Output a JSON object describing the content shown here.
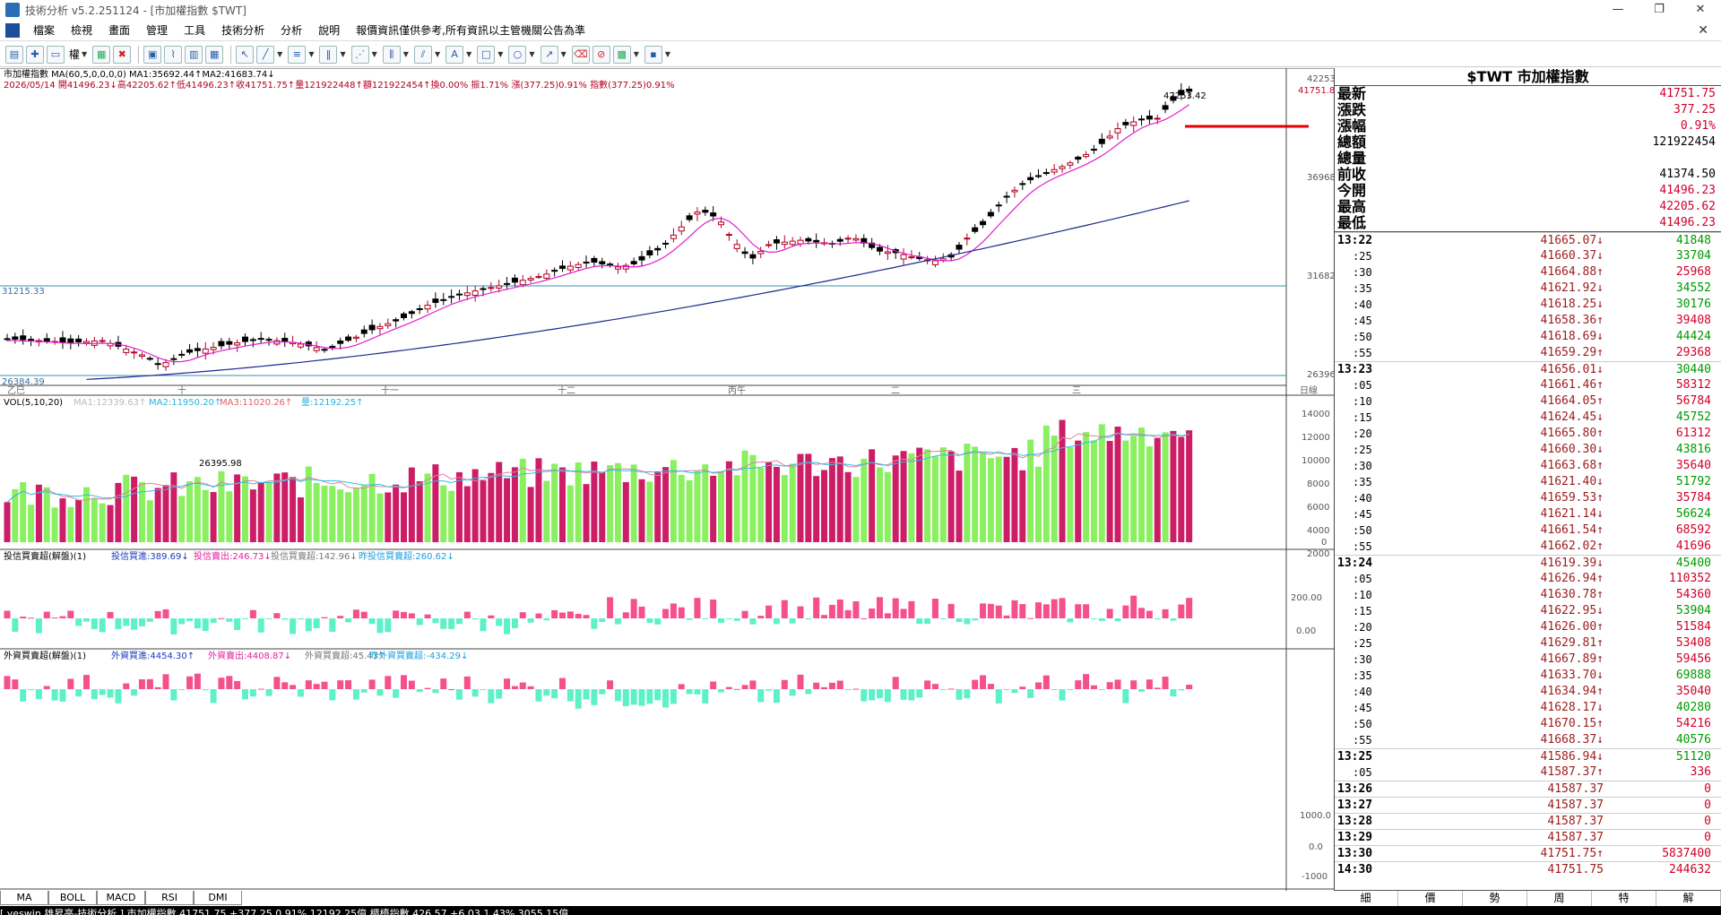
{
  "window": {
    "title": "技術分析 v5.2.251124 - [市加權指數 $TWT]",
    "controls": [
      "—",
      "❐",
      "✕"
    ]
  },
  "menu": [
    "檔案",
    "檢視",
    "畫面",
    "管理",
    "工具",
    "技術分析",
    "分析",
    "說明",
    "報價資訊僅供參考,所有資訊以主管機關公告為準"
  ],
  "toolbar": {
    "right_label": "權",
    "icons": [
      "chart-bars-icon",
      "crosshair-icon",
      "indicator-icon",
      "magnet-icon",
      "red-cross-icon",
      "window-icon",
      "line-chart-icon",
      "compare-icon",
      "layout-icon",
      "cursor-icon",
      "line-draw-icon",
      "hline-icon",
      "vlines-icon",
      "fan-icon",
      "fib-icon",
      "channel-icon",
      "text-icon",
      "rect-icon",
      "ellipse-icon",
      "arrow-icon",
      "eraser-icon",
      "clear-icon",
      "color-icon",
      "save-icon"
    ]
  },
  "chart": {
    "name_line": "市加權指數 MA(60,5,0,0,0,0) MA1:35692.44↑MA2:41683.74↓",
    "ohlc_line": "2026/05/14 開41496.23↓高42205.62↑低41496.23↑收41751.75↑量121922448↑額121922454↑換0.00% 振1.71% 漲(377.25)0.91% 指數(377.25)0.91%",
    "high_label": "42253.42",
    "last_label": "41751.8",
    "low_label": "26395.98",
    "hline1_label": "31215.33",
    "hline2_label": "26384.39",
    "yaxis": [
      "42253",
      "36968",
      "31682",
      "26396"
    ],
    "xaxis": [
      "乙巳",
      "十",
      "十一",
      "十二",
      "丙午",
      "二",
      "三"
    ],
    "xaxis_unit": "日線",
    "vol_line": {
      "a": "VOL(5,10,20)",
      "b": "MA1:12339.63↑",
      "c": "MA2:11950.20↑",
      "d": "MA3:11020.26↑",
      "e": "量:12192.25↑"
    },
    "vol_yaxis": [
      "14000",
      "12000",
      "10000",
      "8000",
      "6000",
      "4000",
      "2000",
      "0"
    ],
    "ind1_line": {
      "a": "投信買賣超(解盤)(1)",
      "b": "投信買進:389.69↓",
      "c": "投信賣出:246.73↓",
      "d": "投信買賣超:142.96↓",
      "e": "昨投信買賣超:260.62↓"
    },
    "ind1_yaxis": [
      "200.00",
      "0.00"
    ],
    "ind2_line": {
      "a": "外資買賣超(解盤)(1)",
      "b": "外資買進:4454.30↑",
      "c": "外資賣出:4408.87↓",
      "d": "外資買賣超:45.43↑",
      "e": "昨外資買賣超:-434.29↓"
    },
    "ind2_yaxis": [
      "1000.0",
      "0.0",
      "-1000"
    ]
  },
  "quote": {
    "header": "$TWT 市加權指數",
    "rows": [
      {
        "label": "最新",
        "value": "41751.75",
        "color": "red"
      },
      {
        "label": "漲跌",
        "value": "377.25",
        "color": "red"
      },
      {
        "label": "漲幅",
        "value": "0.91%",
        "color": "red"
      },
      {
        "label": "總額",
        "value": "121922454",
        "color": "blk"
      },
      {
        "label": "總量",
        "value": "",
        "color": "blk"
      },
      {
        "label": "前收",
        "value": "41374.50",
        "color": "blk"
      },
      {
        "label": "今開",
        "value": "41496.23",
        "color": "red"
      },
      {
        "label": "最高",
        "value": "42205.62",
        "color": "red"
      },
      {
        "label": "最低",
        "value": "41496.23",
        "color": "red"
      }
    ]
  },
  "ticks": [
    {
      "t": "13:22",
      "p": "41665.07↓",
      "q": "41848",
      "full": true,
      "qc": "grn"
    },
    {
      "t": ":25",
      "p": "41660.37↓",
      "q": "33704",
      "qc": "grn"
    },
    {
      "t": ":30",
      "p": "41664.88↑",
      "q": "25968",
      "qc": "red"
    },
    {
      "t": ":35",
      "p": "41621.92↓",
      "q": "34552",
      "qc": "grn"
    },
    {
      "t": ":40",
      "p": "41618.25↓",
      "q": "30176",
      "qc": "grn"
    },
    {
      "t": ":45",
      "p": "41658.36↑",
      "q": "39408",
      "qc": "red"
    },
    {
      "t": ":50",
      "p": "41618.69↓",
      "q": "44424",
      "qc": "grn"
    },
    {
      "t": ":55",
      "p": "41659.29↑",
      "q": "29368",
      "qc": "red"
    },
    {
      "t": "13:23",
      "p": "41656.01↓",
      "q": "30440",
      "full": true,
      "qc": "grn"
    },
    {
      "t": ":05",
      "p": "41661.46↑",
      "q": "58312",
      "qc": "red"
    },
    {
      "t": ":10",
      "p": "41664.05↑",
      "q": "56784",
      "qc": "red"
    },
    {
      "t": ":15",
      "p": "41624.45↓",
      "q": "45752",
      "qc": "grn"
    },
    {
      "t": ":20",
      "p": "41665.80↑",
      "q": "61312",
      "qc": "red"
    },
    {
      "t": ":25",
      "p": "41660.30↓",
      "q": "43816",
      "qc": "grn"
    },
    {
      "t": ":30",
      "p": "41663.68↑",
      "q": "35640",
      "qc": "red"
    },
    {
      "t": ":35",
      "p": "41621.40↓",
      "q": "51792",
      "qc": "grn"
    },
    {
      "t": ":40",
      "p": "41659.53↑",
      "q": "35784",
      "qc": "red"
    },
    {
      "t": ":45",
      "p": "41621.14↓",
      "q": "56624",
      "qc": "grn"
    },
    {
      "t": ":50",
      "p": "41661.54↑",
      "q": "68592",
      "qc": "red"
    },
    {
      "t": ":55",
      "p": "41662.02↑",
      "q": "41696",
      "qc": "red"
    },
    {
      "t": "13:24",
      "p": "41619.39↓",
      "q": "45400",
      "full": true,
      "qc": "grn"
    },
    {
      "t": ":05",
      "p": "41626.94↑",
      "q": "110352",
      "qc": "red"
    },
    {
      "t": ":10",
      "p": "41630.78↑",
      "q": "54360",
      "qc": "red"
    },
    {
      "t": ":15",
      "p": "41622.95↓",
      "q": "53904",
      "qc": "grn"
    },
    {
      "t": ":20",
      "p": "41626.00↑",
      "q": "51584",
      "qc": "red"
    },
    {
      "t": ":25",
      "p": "41629.81↑",
      "q": "53408",
      "qc": "red"
    },
    {
      "t": ":30",
      "p": "41667.89↑",
      "q": "59456",
      "qc": "red"
    },
    {
      "t": ":35",
      "p": "41633.70↓",
      "q": "69888",
      "qc": "grn"
    },
    {
      "t": ":40",
      "p": "41634.94↑",
      "q": "35040",
      "qc": "red"
    },
    {
      "t": ":45",
      "p": "41628.17↓",
      "q": "40280",
      "qc": "grn"
    },
    {
      "t": ":50",
      "p": "41670.15↑",
      "q": "54216",
      "qc": "red"
    },
    {
      "t": ":55",
      "p": "41668.37↓",
      "q": "40576",
      "qc": "grn"
    },
    {
      "t": "13:25",
      "p": "41586.94↓",
      "q": "51120",
      "full": true,
      "qc": "grn"
    },
    {
      "t": ":05",
      "p": "41587.37↑",
      "q": "336",
      "qc": "red"
    },
    {
      "t": "13:26",
      "p": "41587.37",
      "q": "0",
      "full": true,
      "qc": "red"
    },
    {
      "t": "13:27",
      "p": "41587.37",
      "q": "0",
      "full": true,
      "qc": "red"
    },
    {
      "t": "13:28",
      "p": "41587.37",
      "q": "0",
      "full": true,
      "qc": "red"
    },
    {
      "t": "13:29",
      "p": "41587.37",
      "q": "0",
      "full": true,
      "qc": "red"
    },
    {
      "t": "13:30",
      "p": "41751.75↑",
      "q": "5837400",
      "full": true,
      "qc": "red"
    },
    {
      "t": "14:30",
      "p": "41751.75",
      "q": "244632",
      "full": true,
      "qc": "red"
    }
  ],
  "right_tabs": [
    "細",
    "價",
    "勢",
    "周",
    "特",
    "解"
  ],
  "left_tabs": [
    "MA",
    "BOLL",
    "MACD",
    "RSI",
    "DMI"
  ],
  "status": "[ yeswin 雄昇亮-技術分析 ] 市加權指數 41751.75 +377.25 0.91% 12192.25億     櫃檯指數 426.57 +6.03 1.43% 3055.15億"
}
